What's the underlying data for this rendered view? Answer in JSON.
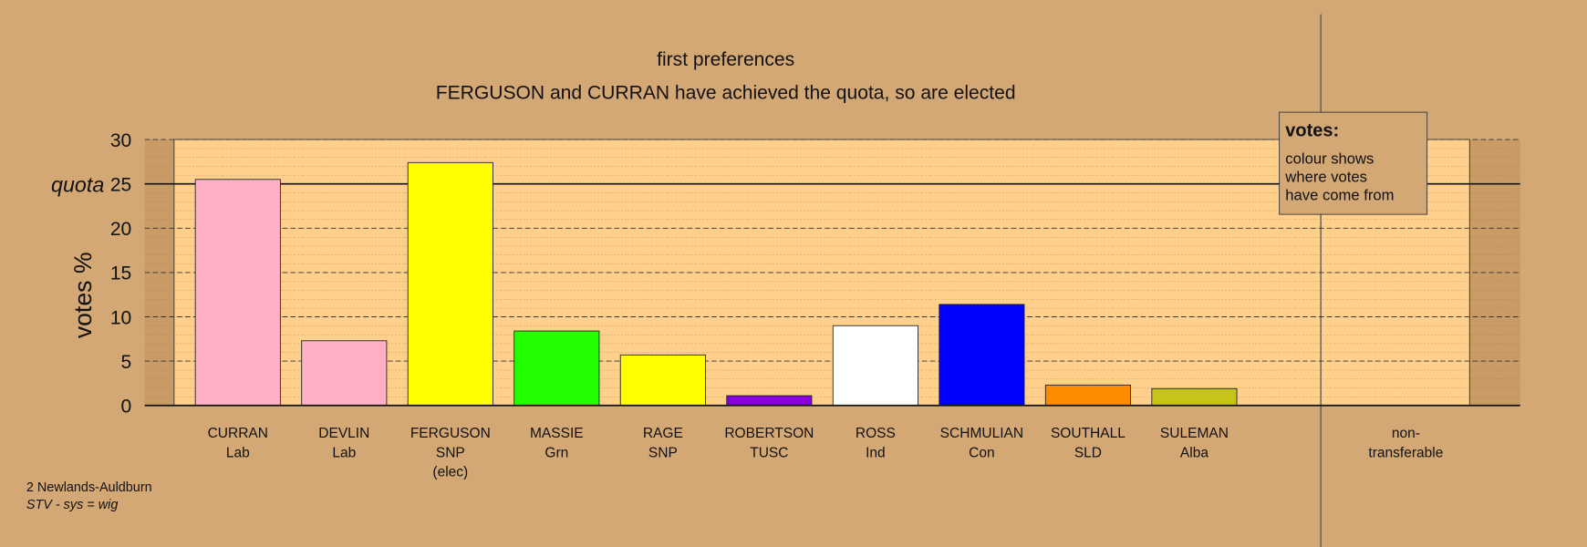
{
  "chart_data": {
    "type": "bar",
    "title": "first preferences",
    "subtitle": "FERGUSON and CURRAN have achieved the quota, so are elected",
    "y_label": "votes %",
    "categories": [
      [
        "CURRAN",
        "Lab"
      ],
      [
        "DEVLIN",
        "Lab"
      ],
      [
        "FERGUSON",
        "SNP",
        "(elec)"
      ],
      [
        "MASSIE",
        "Grn"
      ],
      [
        "RAGE",
        "SNP"
      ],
      [
        "ROBERTSON",
        "TUSC"
      ],
      [
        "ROSS",
        "Ind"
      ],
      [
        "SCHMULIAN",
        "Con"
      ],
      [
        "SOUTHALL",
        "SLD"
      ],
      [
        "SULEMAN",
        "Alba"
      ],
      [
        "non-",
        "transferable"
      ]
    ],
    "values": [
      25.5,
      7.3,
      27.4,
      8.4,
      5.7,
      1.1,
      9.0,
      11.4,
      2.3,
      1.9,
      0
    ],
    "colors": [
      "#ffb0c4",
      "#ffb0c4",
      "#ffff00",
      "#22ff00",
      "#ffff00",
      "#8800dd",
      "#ffffff",
      "#0000ff",
      "#ff8c00",
      "#c4c41a",
      "#ffffff"
    ],
    "ylim": [
      0,
      30
    ],
    "yticks": [
      0,
      5,
      10,
      15,
      20,
      25,
      30
    ],
    "grid": true,
    "quota": {
      "value": 25,
      "label": "quota"
    },
    "legend": {
      "title": "votes:",
      "lines": [
        "colour shows",
        "where votes",
        "have come from"
      ]
    },
    "footer": [
      "2 Newlands-Auldburn",
      "STV - sys = wig"
    ]
  }
}
